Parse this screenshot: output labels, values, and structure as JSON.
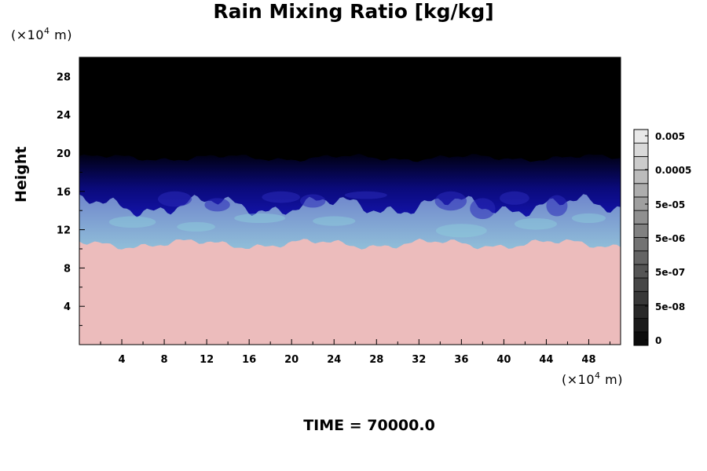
{
  "chart_data": {
    "type": "heatmap",
    "title": "Rain Mixing Ratio [kg/kg]",
    "ylabel": "Height",
    "y_unit": {
      "prefix": "(×10",
      "exp": "4",
      "suffix": " m)"
    },
    "x_unit": {
      "prefix": "(×10",
      "exp": "4",
      "suffix": " m)"
    },
    "footer": "TIME = 70000.0",
    "xlim": [
      0,
      51
    ],
    "ylim": [
      0,
      30
    ],
    "x_ticks": [
      4,
      8,
      12,
      16,
      20,
      24,
      28,
      32,
      36,
      40,
      44,
      48
    ],
    "y_ticks": [
      4,
      8,
      12,
      16,
      20,
      24,
      28
    ],
    "layers": [
      {
        "name": "lower layer",
        "color": "#ecbcbc",
        "top_mean": 10.5
      },
      {
        "name": "cloud layer",
        "color": "#9fc6d6",
        "top_mean": 14.5
      },
      {
        "name": "blue layer",
        "color": "#1818c8",
        "top_mean": 19.5
      },
      {
        "name": "upper layer",
        "color": "#000000",
        "top": 30
      }
    ],
    "colorbar": {
      "labels": [
        "0.005",
        "0.0005",
        "5e-05",
        "5e-06",
        "5e-07",
        "5e-08",
        "0"
      ],
      "n_levels": 16,
      "low_color": "#000000",
      "high_color": "#f2f2f2"
    }
  }
}
